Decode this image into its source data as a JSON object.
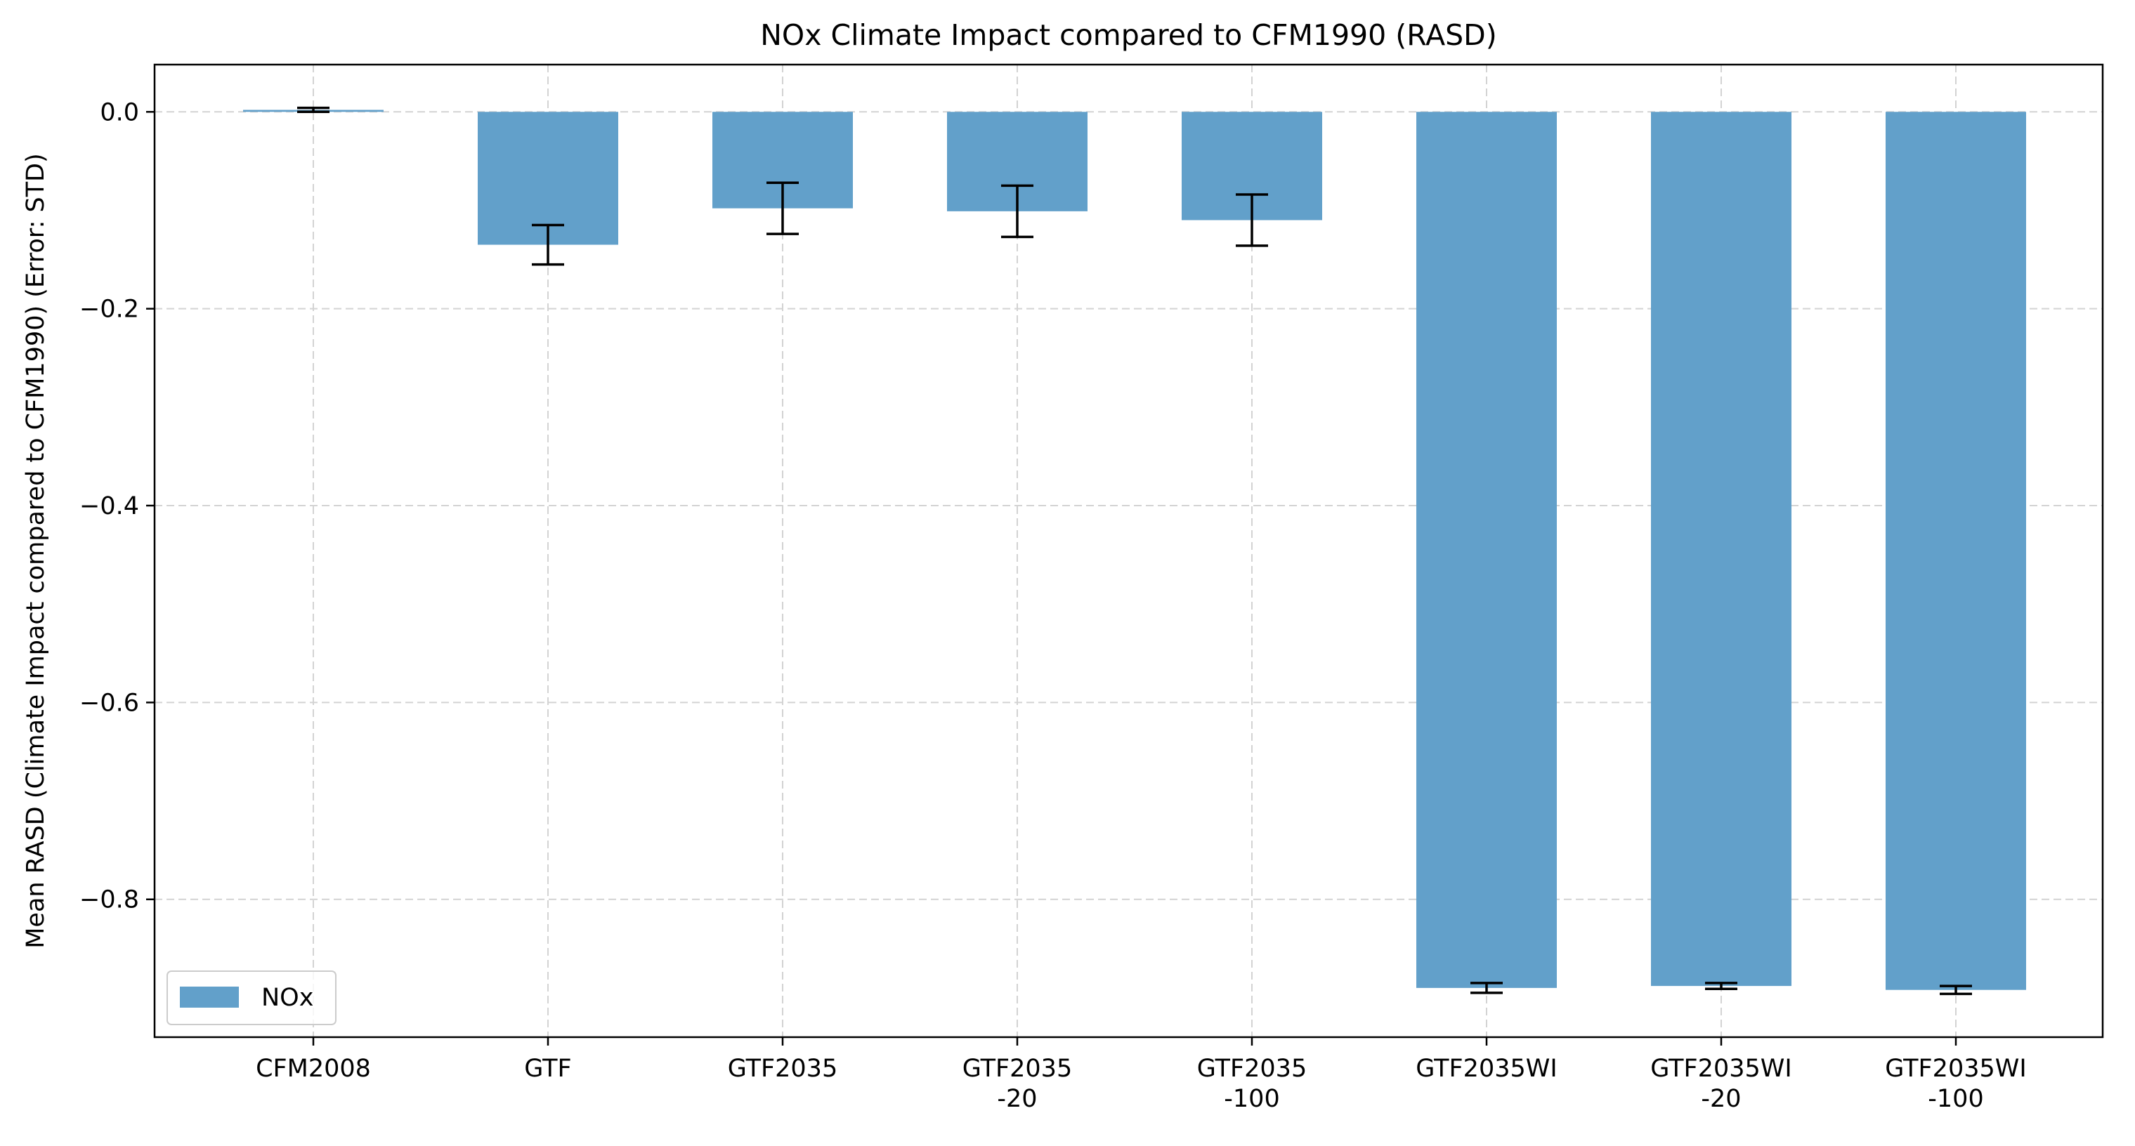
{
  "chart_data": {
    "type": "bar",
    "title": "NOx Climate Impact compared to CFM1990 (RASD)",
    "xlabel": "",
    "ylabel": "Mean RASD (Climate Impact compared to CFM1990) (Error: STD)",
    "categories": [
      [
        "CFM2008"
      ],
      [
        "GTF"
      ],
      [
        "GTF2035"
      ],
      [
        "GTF2035",
        "-20"
      ],
      [
        "GTF2035",
        "-100"
      ],
      [
        "GTF2035WI"
      ],
      [
        "GTF2035WI",
        "-20"
      ],
      [
        "GTF2035WI",
        "-100"
      ]
    ],
    "series": [
      {
        "name": "NOx",
        "color": "#62a0ca",
        "values": [
          0.002,
          -0.135,
          -0.098,
          -0.101,
          -0.11,
          -0.89,
          -0.888,
          -0.892
        ],
        "errors": [
          0.002,
          0.02,
          0.026,
          0.026,
          0.026,
          0.005,
          0.003,
          0.004
        ]
      }
    ],
    "ylim": [
      -0.94,
      0.048
    ],
    "yticks": [
      0.0,
      -0.2,
      -0.4,
      -0.6,
      -0.8
    ],
    "ytick_labels": [
      "0.0",
      "−0.2",
      "−0.4",
      "−0.6",
      "−0.8"
    ],
    "grid": true,
    "legend_position": "lower-left"
  }
}
